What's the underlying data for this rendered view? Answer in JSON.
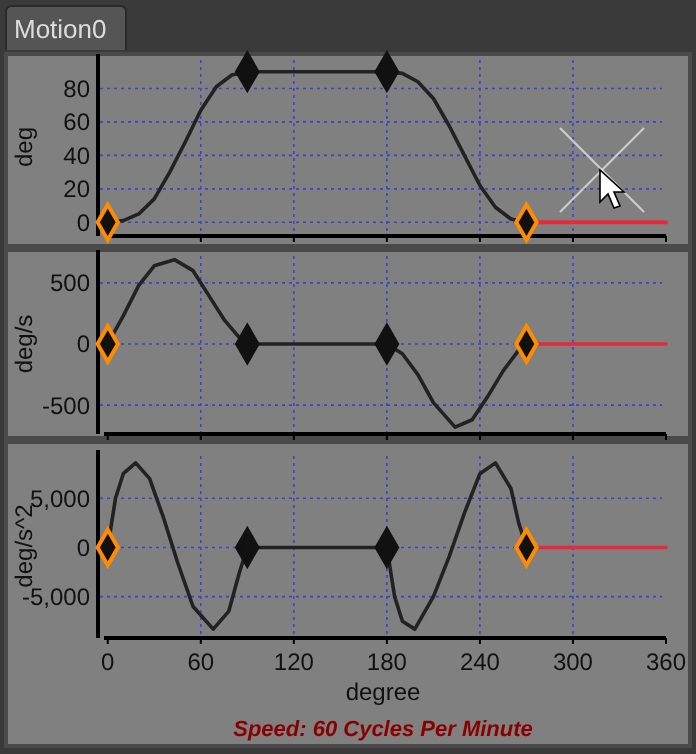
{
  "chart_data": [
    {
      "type": "line",
      "title": "Motion0",
      "ylabel": "deg",
      "xlim": [
        -5,
        360
      ],
      "xticks": [
        0,
        60,
        120,
        180,
        240,
        300,
        360
      ],
      "ylim": [
        -7,
        97
      ],
      "yticks": [
        0,
        20,
        40,
        60,
        80
      ],
      "grid": true,
      "tick_labels": "y",
      "line_style": "solid",
      "series": [
        {
          "color": "#222222",
          "x": [
            0,
            10,
            20,
            30,
            40,
            45,
            50,
            60,
            70,
            80,
            90,
            180,
            190,
            200,
            210,
            220,
            225,
            230,
            240,
            250,
            260,
            270
          ],
          "values": [
            0,
            1,
            5,
            14,
            30,
            39,
            48,
            67,
            81,
            88,
            90,
            90,
            89,
            84,
            74,
            58,
            49,
            40,
            22,
            9,
            2,
            0
          ]
        },
        {
          "type": "line",
          "color": "#e8283c",
          "x": [
            270,
            360
          ],
          "values": [
            0,
            0
          ]
        },
        {
          "type": "scatter",
          "marker": "diamond",
          "x": [
            0,
            90,
            180,
            270
          ],
          "values": [
            0,
            90,
            90,
            0
          ],
          "colors": [
            "#ff8c00",
            "#111111",
            "#111111",
            "#ff8c00"
          ]
        }
      ]
    },
    {
      "type": "line",
      "ylabel": "deg/s",
      "xlim": [
        -5,
        360
      ],
      "xticks": [
        0,
        60,
        120,
        180,
        240,
        300,
        360
      ],
      "ylim": [
        -720,
        720
      ],
      "yticks": [
        -500,
        0,
        500
      ],
      "grid": true,
      "tick_labels": "y",
      "line_style": "solid",
      "series": [
        {
          "color": "#222222",
          "x": [
            0,
            10,
            20,
            30,
            43,
            55,
            65,
            75,
            85,
            90,
            180,
            190,
            200,
            210,
            224,
            235,
            245,
            255,
            265,
            270
          ],
          "values": [
            0,
            230,
            480,
            640,
            690,
            600,
            400,
            200,
            50,
            0,
            0,
            -80,
            -250,
            -480,
            -680,
            -620,
            -430,
            -220,
            -50,
            0
          ]
        },
        {
          "type": "line",
          "color": "#e8283c",
          "x": [
            270,
            360
          ],
          "values": [
            0,
            0
          ]
        },
        {
          "type": "scatter",
          "marker": "diamond",
          "x": [
            0,
            90,
            180,
            270
          ],
          "values": [
            0,
            0,
            0,
            0
          ],
          "colors": [
            "#ff8c00",
            "#111111",
            "#111111",
            "#ff8c00"
          ]
        }
      ]
    },
    {
      "type": "line",
      "ylabel": "deg/s^2",
      "xlabel": "degree",
      "xlim": [
        -5,
        360
      ],
      "xticks": [
        0,
        60,
        120,
        180,
        240,
        300,
        360
      ],
      "ylim": [
        -9000,
        9300
      ],
      "yticks": [
        {
          "value": -5000,
          "label": "-5,000"
        },
        0,
        {
          "value": 5000,
          "label": "5,000"
        }
      ],
      "grid": true,
      "line_style": "solid",
      "annotations": [
        "Speed: 60 Cycles Per Minute"
      ],
      "series": [
        {
          "color": "#222222",
          "x": [
            0,
            5,
            10,
            18,
            27,
            36,
            45,
            55,
            68,
            78,
            85,
            90,
            180,
            185,
            190,
            198,
            210,
            220,
            230,
            240,
            250,
            260,
            265,
            270
          ],
          "values": [
            0,
            5000,
            7500,
            8600,
            7000,
            3000,
            -1500,
            -6000,
            -8300,
            -6500,
            -2500,
            0,
            0,
            -5000,
            -7500,
            -8300,
            -5000,
            -1000,
            3500,
            7500,
            8600,
            6000,
            2500,
            0
          ]
        },
        {
          "type": "line",
          "color": "#e8283c",
          "x": [
            270,
            360
          ],
          "values": [
            0,
            0
          ]
        },
        {
          "type": "scatter",
          "marker": "diamond",
          "x": [
            0,
            90,
            180,
            270
          ],
          "values": [
            0,
            0,
            0,
            0
          ],
          "colors": [
            "#ff8c00",
            "#111111",
            "#111111",
            "#ff8c00"
          ]
        }
      ]
    }
  ]
}
